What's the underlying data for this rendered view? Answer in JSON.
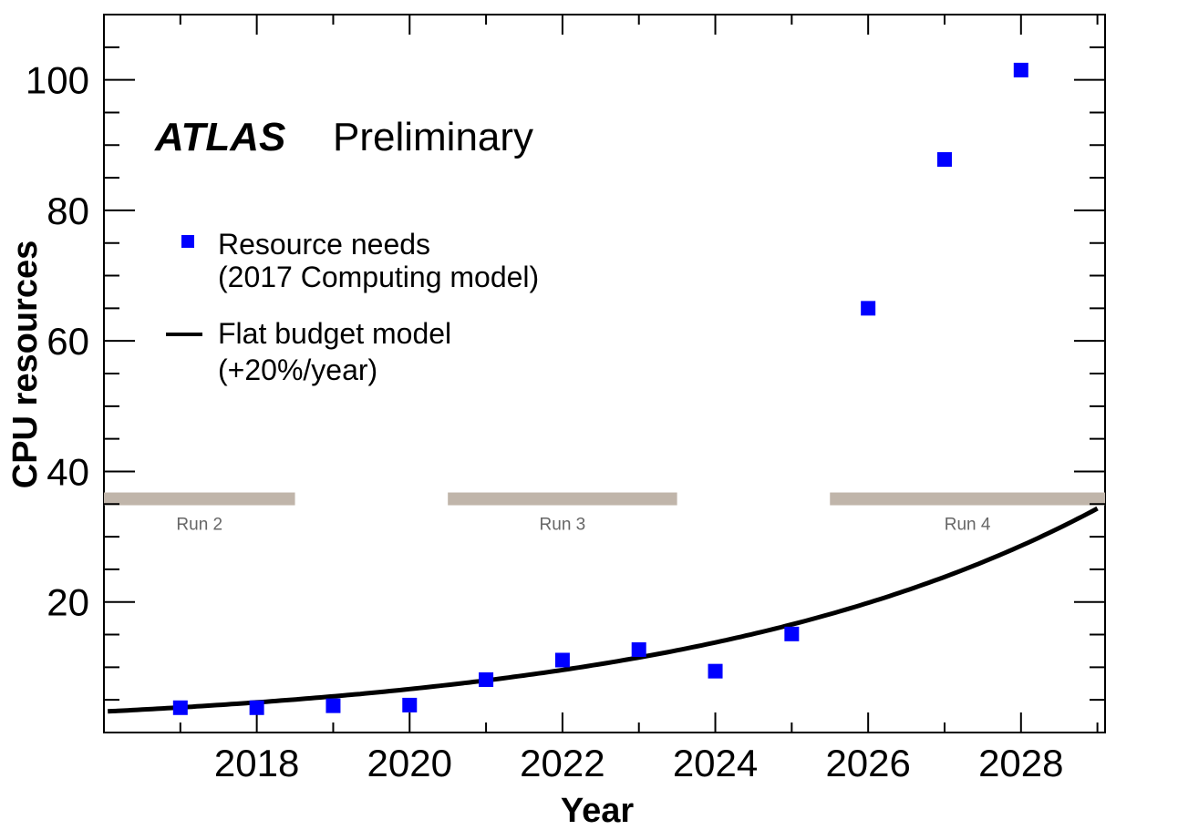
{
  "chart_data": {
    "type": "scatter",
    "experiment": "ATLAS",
    "status": "Preliminary",
    "xlabel": "Year",
    "ylabel": "CPU resources",
    "xlim": [
      2016.0,
      2029.1
    ],
    "ylim": [
      0,
      110
    ],
    "x_ticks": [
      2018,
      2020,
      2022,
      2024,
      2026,
      2028
    ],
    "y_ticks": [
      20,
      40,
      60,
      80,
      100
    ],
    "series": [
      {
        "name": "Resource needs",
        "name_line2": "(2017 Computing model)",
        "kind": "points",
        "marker": "square",
        "color": "#0000ff",
        "x": [
          2017,
          2018,
          2019,
          2020,
          2021,
          2022,
          2023,
          2024,
          2025,
          2026,
          2027,
          2028
        ],
        "y": [
          3.8,
          3.8,
          4.1,
          4.2,
          8.1,
          11.1,
          12.7,
          9.4,
          15.1,
          65.0,
          87.8,
          101.5
        ]
      },
      {
        "name": "Flat budget model",
        "name_line2": "(+20%/year)",
        "kind": "curve",
        "color": "#000000",
        "base_year": 2017,
        "base_value": 3.85,
        "annual_growth": 0.2,
        "x_range": [
          2016.05,
          2029.0
        ]
      }
    ],
    "runs": [
      {
        "label": "Run 2",
        "start": 2016.0,
        "end": 2018.5
      },
      {
        "label": "Run 3",
        "start": 2020.5,
        "end": 2023.5
      },
      {
        "label": "Run 4",
        "start": 2025.5,
        "end": 2029.1
      }
    ],
    "run_bar_value": 35.8,
    "run_bar_color": "#c0b5aa"
  }
}
